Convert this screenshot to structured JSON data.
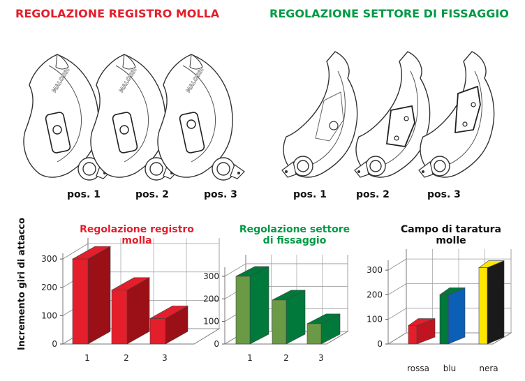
{
  "header": {
    "left_title": "REGOLAZIONE REGISTRO MOLLA",
    "right_title": "REGOLAZIONE SETTORE DI FISSAGGIO"
  },
  "brand": {
    "logo_text": "MALOSSI"
  },
  "diagrams": {
    "left_labels": [
      "pos. 1",
      "pos. 2",
      "pos. 3"
    ],
    "right_labels": [
      "pos. 1",
      "pos. 2",
      "pos. 3"
    ]
  },
  "y_axis_label": "Incremento giri di attacco",
  "colors": {
    "red": "#e41e2b",
    "dark_red": "#9b0f16",
    "green_front": "#6a9a45",
    "green_side": "#00793a",
    "heading_green": "#009a44",
    "blue": "#0b5fb5",
    "yellow": "#ffe600",
    "black": "#1a1a1a"
  },
  "chart_data": [
    {
      "type": "bar",
      "title": "Regolazione registro molla",
      "categories": [
        "1",
        "2",
        "3"
      ],
      "values": [
        300,
        190,
        90
      ],
      "yticks": [
        "0",
        "100",
        "200",
        "300"
      ],
      "ylim": [
        0,
        320
      ],
      "grid": true,
      "ylabel": "Incremento giri di attacco"
    },
    {
      "type": "bar",
      "title": "Regolazione settore di fissaggio",
      "categories": [
        "1",
        "2",
        "3"
      ],
      "values": [
        300,
        195,
        90
      ],
      "yticks": [
        "0",
        "100",
        "200",
        "300"
      ],
      "ylim": [
        0,
        340
      ],
      "grid": true
    },
    {
      "type": "bar",
      "title": "Campo di taratura molle",
      "categories": [
        "rossa",
        "blu",
        "nera"
      ],
      "series": [
        {
          "low": 0,
          "high": 75
        },
        {
          "low": 0,
          "high": 200
        },
        {
          "low": 0,
          "high": 310
        }
      ],
      "yticks": [
        "0",
        "100",
        "200",
        "300"
      ],
      "ylim": [
        0,
        340
      ],
      "grid": true
    }
  ]
}
